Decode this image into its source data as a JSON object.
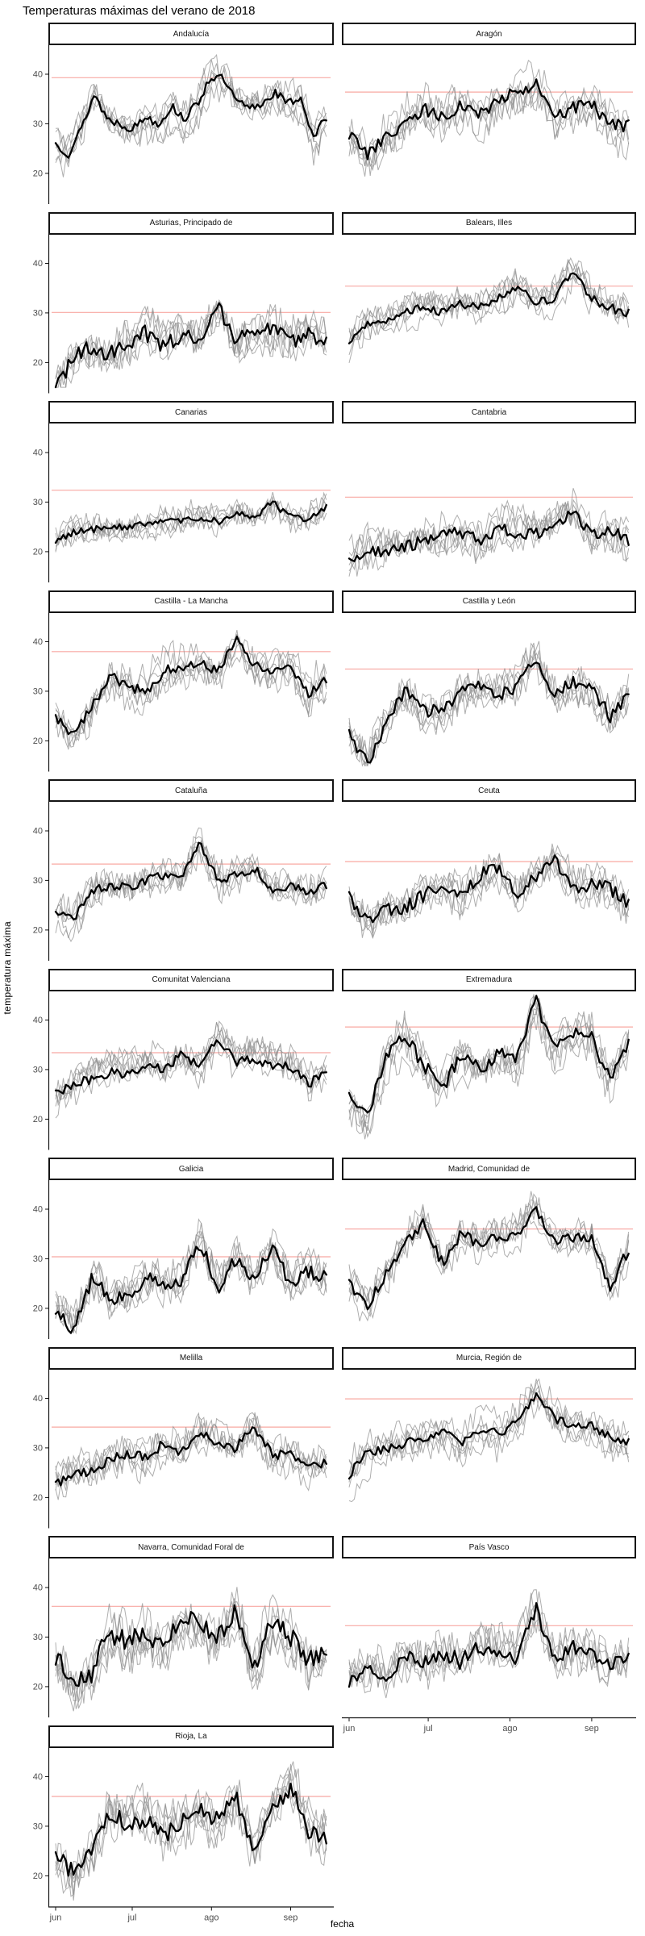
{
  "chart_data": {
    "type": "line",
    "title": "Temperaturas máximas del verano de 2018",
    "xlabel": "fecha",
    "ylabel": "temperatura máxima",
    "x_ticks": [
      {
        "label": "jun",
        "day": 0
      },
      {
        "label": "jul",
        "day": 30
      },
      {
        "label": "ago",
        "day": 61
      },
      {
        "label": "sep",
        "day": 92
      }
    ],
    "x_domain_days": [
      0,
      106
    ],
    "y_ticks": [
      20,
      30,
      40
    ],
    "y_domain": [
      13.8,
      45.85
    ],
    "grid": false,
    "legend_position": "none",
    "layout": "facet_wrap 2 columns, 19 panels",
    "colors": {
      "line_2018": "#000000",
      "other_years_line": "#8f8f8f",
      "reference_line": "#f8a8a2",
      "strip_border": "#141414",
      "axis_line": "#141414",
      "tick_label": "#4d4d4d",
      "background": "#ffffff"
    },
    "facets": [
      {
        "name": "Andalucía",
        "reference_line": 39.3,
        "other_lines_count": 6,
        "volatility": 1.2,
        "gray_spread": 3.0,
        "line_2018_keypoints": [
          26,
          24,
          29,
          36,
          31,
          30,
          29,
          31.5,
          30,
          33.5,
          31,
          34,
          39.5,
          39,
          34.5,
          33,
          34,
          36.5,
          34,
          35.5,
          27,
          31.5
        ]
      },
      {
        "name": "Aragón",
        "reference_line": 36.4,
        "other_lines_count": 6,
        "volatility": 1.8,
        "gray_spread": 3.5,
        "line_2018_keypoints": [
          28,
          24,
          27,
          30,
          33,
          31,
          34,
          32,
          35,
          36.5,
          38,
          31,
          33,
          34,
          30,
          29.5
        ]
      },
      {
        "name": "Asturias, Principado de",
        "reference_line": 30.1,
        "other_lines_count": 6,
        "volatility": 2.3,
        "gray_spread": 2.5,
        "line_2018_keypoints": [
          14.5,
          21,
          23,
          22,
          24,
          26,
          23,
          26,
          24,
          31,
          25,
          26,
          26.5,
          24,
          25.5,
          24
        ]
      },
      {
        "name": "Balears, Illes",
        "reference_line": 35.4,
        "other_lines_count": 6,
        "volatility": 1.2,
        "gray_spread": 2.5,
        "line_2018_keypoints": [
          24,
          28,
          28.5,
          30,
          31,
          30,
          32,
          31,
          33,
          35.5,
          32,
          33,
          38.5,
          33,
          31,
          30
        ]
      },
      {
        "name": "Canarias",
        "reference_line": 32.4,
        "other_lines_count": 6,
        "volatility": 0.9,
        "gray_spread": 1.6,
        "line_2018_keypoints": [
          22,
          24,
          24.5,
          25,
          25,
          25.5,
          26,
          26,
          27,
          26,
          28,
          27,
          30,
          27,
          26.5,
          29
        ]
      },
      {
        "name": "Cantabria",
        "reference_line": 31.0,
        "other_lines_count": 6,
        "volatility": 1.7,
        "gray_spread": 2.6,
        "line_2018_keypoints": [
          18,
          20,
          19.5,
          21,
          22,
          23,
          24,
          22,
          24.5,
          24,
          23.5,
          25,
          28.5,
          23,
          24,
          22.5
        ]
      },
      {
        "name": "Castilla - La Mancha",
        "reference_line": 38.0,
        "other_lines_count": 6,
        "volatility": 1.4,
        "gray_spread": 3.0,
        "line_2018_keypoints": [
          25,
          21,
          27,
          33,
          31,
          30,
          34,
          35,
          36,
          34,
          41,
          35,
          34.5,
          35,
          29,
          32.5
        ]
      },
      {
        "name": "Castilla y León",
        "reference_line": 34.5,
        "other_lines_count": 6,
        "volatility": 1.8,
        "gray_spread": 3.0,
        "line_2018_keypoints": [
          21,
          15.5,
          24,
          30,
          26,
          26,
          30,
          31,
          29,
          31,
          37.5,
          29,
          32,
          31,
          25,
          29.5
        ]
      },
      {
        "name": "Cataluña",
        "reference_line": 33.3,
        "other_lines_count": 6,
        "volatility": 1.2,
        "gray_spread": 2.4,
        "line_2018_keypoints": [
          24,
          22,
          28,
          29,
          28.5,
          30,
          31,
          30.5,
          37.5,
          30,
          31,
          32.5,
          28,
          29,
          27.5,
          29
        ]
      },
      {
        "name": "Ceuta",
        "reference_line": 33.8,
        "other_lines_count": 6,
        "volatility": 1.8,
        "gray_spread": 2.4,
        "line_2018_keypoints": [
          27,
          21.5,
          24,
          24.5,
          27,
          29.5,
          27,
          31,
          33,
          27.5,
          31,
          34,
          28.5,
          29,
          28.5,
          25
        ]
      },
      {
        "name": "Comunitat Valenciana",
        "reference_line": 33.4,
        "other_lines_count": 6,
        "volatility": 1.3,
        "gray_spread": 2.5,
        "line_2018_keypoints": [
          25,
          27,
          28,
          29.5,
          29,
          31,
          30,
          33,
          31,
          36.5,
          31.5,
          32,
          31,
          30.5,
          27,
          30
        ]
      },
      {
        "name": "Extremadura",
        "reference_line": 38.6,
        "other_lines_count": 6,
        "volatility": 1.9,
        "gray_spread": 3.5,
        "line_2018_keypoints": [
          24,
          20.5,
          33,
          36.5,
          31,
          26,
          33,
          30,
          33.5,
          32,
          44,
          34,
          37,
          36.5,
          28,
          36
        ]
      },
      {
        "name": "Galicia",
        "reference_line": 30.4,
        "other_lines_count": 6,
        "volatility": 1.9,
        "gray_spread": 3.0,
        "line_2018_keypoints": [
          20,
          15.5,
          26,
          22,
          22.5,
          26,
          24.5,
          25,
          33.5,
          24,
          30,
          26,
          32,
          25,
          27.5,
          26
        ]
      },
      {
        "name": "Madrid, Comunidad de",
        "reference_line": 36.0,
        "other_lines_count": 6,
        "volatility": 1.5,
        "gray_spread": 3.0,
        "line_2018_keypoints": [
          25,
          20.5,
          27,
          33,
          37.5,
          29,
          35,
          33,
          34.5,
          35,
          40.5,
          33.5,
          34,
          34.5,
          24,
          32
        ]
      },
      {
        "name": "Melilla",
        "reference_line": 34.2,
        "other_lines_count": 6,
        "volatility": 1.3,
        "gray_spread": 2.4,
        "line_2018_keypoints": [
          22.5,
          25,
          25,
          27.5,
          29,
          28,
          31,
          29,
          33,
          31,
          30,
          34.3,
          28.5,
          29,
          26,
          27
        ]
      },
      {
        "name": "Murcia, Región de",
        "reference_line": 39.9,
        "other_lines_count": 6,
        "volatility": 1.3,
        "gray_spread": 3.0,
        "line_2018_keypoints": [
          24.5,
          29,
          30,
          31,
          32,
          33,
          31,
          34,
          33,
          35,
          41,
          36,
          34,
          34.5,
          32,
          31.5
        ]
      },
      {
        "name": "Navarra, Comunidad Foral de",
        "reference_line": 36.2,
        "other_lines_count": 6,
        "volatility": 2.8,
        "gray_spread": 3.5,
        "line_2018_keypoints": [
          26.5,
          20,
          23,
          31,
          29,
          31,
          28,
          34,
          32,
          30,
          36,
          24,
          33.5,
          30,
          25,
          27
        ]
      },
      {
        "name": "País Vasco",
        "reference_line": 32.3,
        "other_lines_count": 6,
        "volatility": 2.1,
        "gray_spread": 3.0,
        "line_2018_keypoints": [
          21,
          23,
          22,
          26,
          25,
          27,
          25,
          28,
          27.5,
          26,
          36,
          26,
          28,
          26.5,
          24,
          25.5
        ]
      },
      {
        "name": "Rioja, La",
        "reference_line": 36.0,
        "other_lines_count": 6,
        "volatility": 2.4,
        "gray_spread": 3.5,
        "line_2018_keypoints": [
          24,
          20.5,
          25,
          33,
          30,
          31.5,
          28,
          31,
          34,
          31,
          36,
          25,
          33,
          38,
          29,
          28
        ]
      }
    ]
  }
}
